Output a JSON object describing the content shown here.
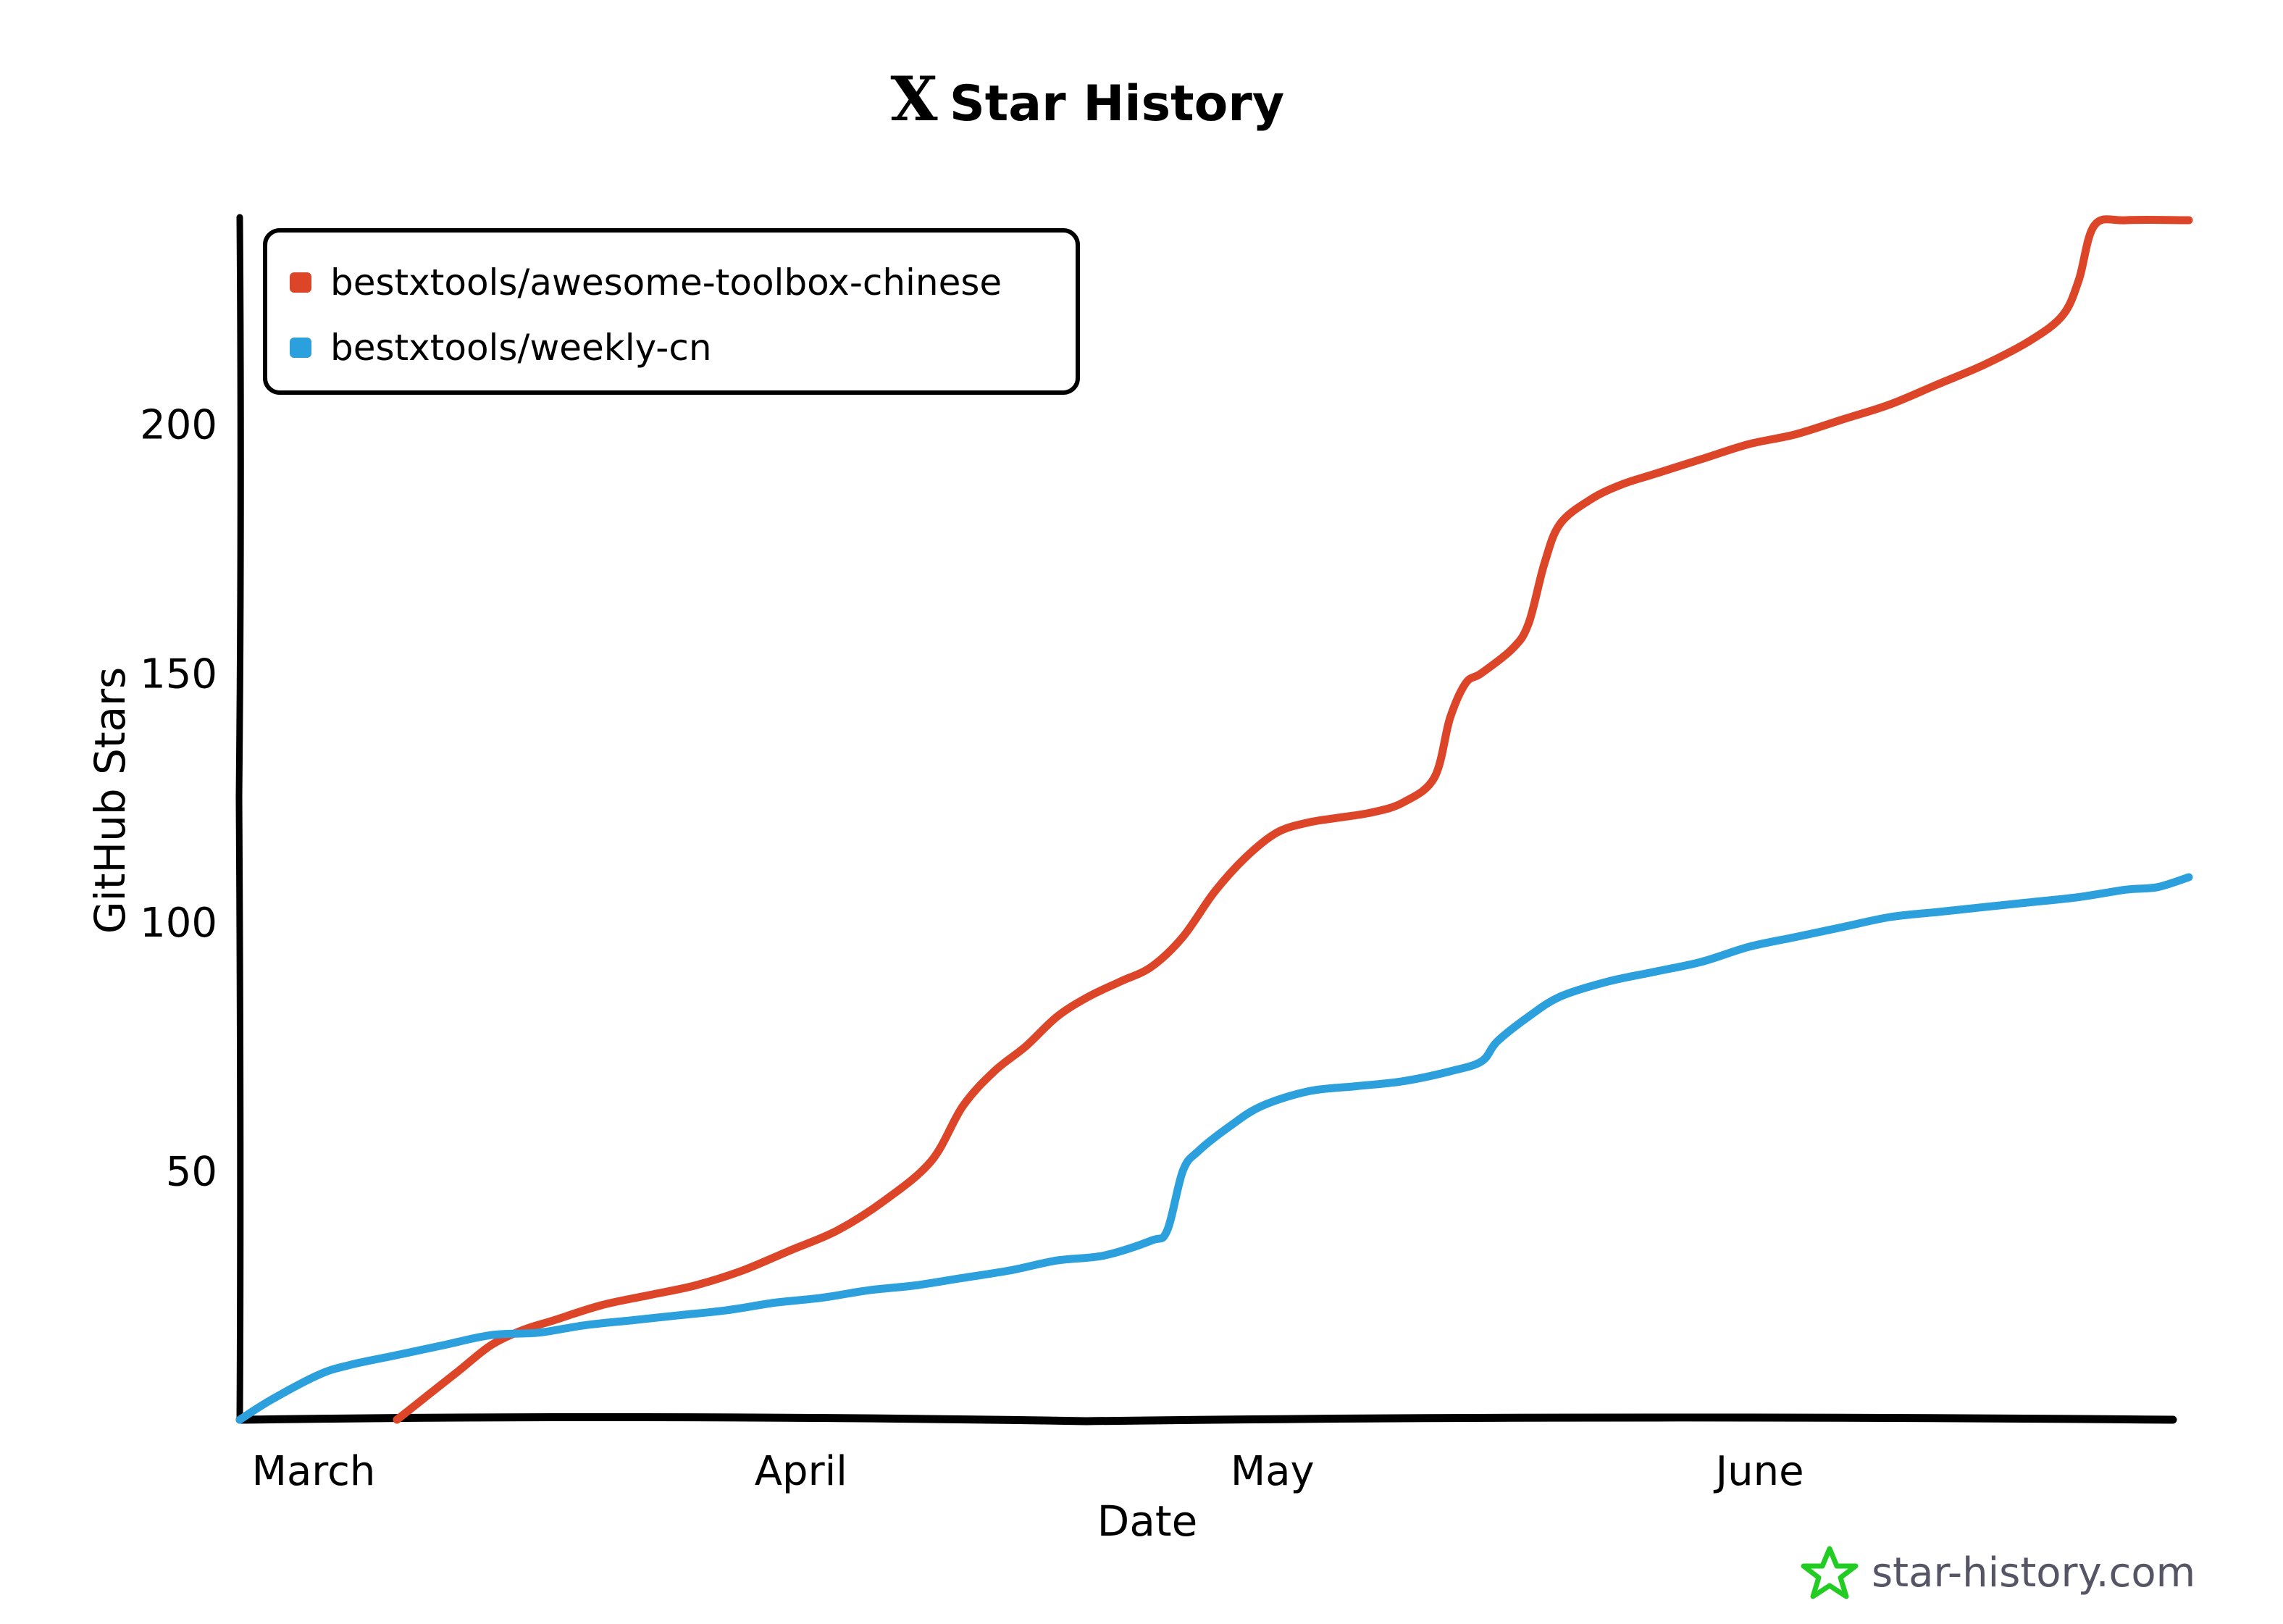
{
  "chart_data": {
    "type": "line",
    "title": "Star History",
    "title_logo": "X",
    "xlabel": "Date",
    "ylabel": "GitHub Stars",
    "x_tick_labels": [
      "March",
      "April",
      "May",
      "June"
    ],
    "y_tick_labels": [
      "50",
      "100",
      "150",
      "200"
    ],
    "y_ticks": [
      50,
      100,
      150,
      200
    ],
    "ylim": [
      0,
      241
    ],
    "x_is_day_of_year": false,
    "legend_position": "top-left",
    "grid": false,
    "series": [
      {
        "name": "bestxtools/awesome-toolbox-chinese",
        "color": "#dd4528",
        "points": [
          [
            "2024-03-11",
            0
          ],
          [
            "2024-03-13",
            5
          ],
          [
            "2024-03-15",
            10
          ],
          [
            "2024-03-17",
            15
          ],
          [
            "2024-03-19",
            18
          ],
          [
            "2024-03-21",
            20
          ],
          [
            "2024-03-24",
            23
          ],
          [
            "2024-03-27",
            25
          ],
          [
            "2024-03-30",
            27
          ],
          [
            "2024-04-02",
            30
          ],
          [
            "2024-04-05",
            34
          ],
          [
            "2024-04-08",
            38
          ],
          [
            "2024-04-11",
            44
          ],
          [
            "2024-04-14",
            52
          ],
          [
            "2024-04-16",
            63
          ],
          [
            "2024-04-18",
            70
          ],
          [
            "2024-04-20",
            75
          ],
          [
            "2024-04-22",
            81
          ],
          [
            "2024-04-24",
            85
          ],
          [
            "2024-04-26",
            88
          ],
          [
            "2024-04-28",
            91
          ],
          [
            "2024-04-30",
            97
          ],
          [
            "2024-05-02",
            106
          ],
          [
            "2024-05-04",
            113
          ],
          [
            "2024-05-06",
            118
          ],
          [
            "2024-05-08",
            120
          ],
          [
            "2024-05-10",
            121
          ],
          [
            "2024-05-12",
            122
          ],
          [
            "2024-05-14",
            124
          ],
          [
            "2024-05-16",
            129
          ],
          [
            "2024-05-17",
            141
          ],
          [
            "2024-05-18",
            148
          ],
          [
            "2024-05-19",
            150
          ],
          [
            "2024-05-21",
            155
          ],
          [
            "2024-05-22",
            160
          ],
          [
            "2024-05-23",
            172
          ],
          [
            "2024-05-24",
            180
          ],
          [
            "2024-05-26",
            185
          ],
          [
            "2024-05-28",
            188
          ],
          [
            "2024-05-30",
            190
          ],
          [
            "2024-06-02",
            193
          ],
          [
            "2024-06-05",
            196
          ],
          [
            "2024-06-08",
            198
          ],
          [
            "2024-06-11",
            201
          ],
          [
            "2024-06-14",
            204
          ],
          [
            "2024-06-17",
            208
          ],
          [
            "2024-06-20",
            212
          ],
          [
            "2024-06-23",
            217
          ],
          [
            "2024-06-25",
            222
          ],
          [
            "2024-06-26",
            229
          ],
          [
            "2024-06-27",
            240
          ],
          [
            "2024-06-29",
            241
          ],
          [
            "2024-07-03",
            241
          ]
        ]
      },
      {
        "name": "bestxtools/weekly-cn",
        "color": "#2ca0dc",
        "points": [
          [
            "2024-03-01",
            0
          ],
          [
            "2024-03-03",
            4
          ],
          [
            "2024-03-06",
            9
          ],
          [
            "2024-03-08",
            11
          ],
          [
            "2024-03-11",
            13
          ],
          [
            "2024-03-14",
            15
          ],
          [
            "2024-03-17",
            17
          ],
          [
            "2024-03-20",
            17.5
          ],
          [
            "2024-03-23",
            19
          ],
          [
            "2024-03-26",
            20
          ],
          [
            "2024-03-29",
            21
          ],
          [
            "2024-04-01",
            22
          ],
          [
            "2024-04-04",
            23.5
          ],
          [
            "2024-04-07",
            24.5
          ],
          [
            "2024-04-10",
            26
          ],
          [
            "2024-04-13",
            27
          ],
          [
            "2024-04-16",
            28.5
          ],
          [
            "2024-04-19",
            30
          ],
          [
            "2024-04-22",
            32
          ],
          [
            "2024-04-25",
            33
          ],
          [
            "2024-04-28",
            36
          ],
          [
            "2024-04-29",
            38
          ],
          [
            "2024-04-30",
            50
          ],
          [
            "2024-05-01",
            54
          ],
          [
            "2024-05-03",
            59
          ],
          [
            "2024-05-05",
            63
          ],
          [
            "2024-05-08",
            66
          ],
          [
            "2024-05-11",
            67
          ],
          [
            "2024-05-14",
            68
          ],
          [
            "2024-05-17",
            70
          ],
          [
            "2024-05-19",
            72
          ],
          [
            "2024-05-20",
            76
          ],
          [
            "2024-05-22",
            81
          ],
          [
            "2024-05-24",
            85
          ],
          [
            "2024-05-27",
            88
          ],
          [
            "2024-05-30",
            90
          ],
          [
            "2024-06-02",
            92
          ],
          [
            "2024-06-05",
            95
          ],
          [
            "2024-06-08",
            97
          ],
          [
            "2024-06-11",
            99
          ],
          [
            "2024-06-14",
            101
          ],
          [
            "2024-06-17",
            102
          ],
          [
            "2024-06-20",
            103
          ],
          [
            "2024-06-23",
            104
          ],
          [
            "2024-06-26",
            105
          ],
          [
            "2024-06-29",
            106.5
          ],
          [
            "2024-07-01",
            107
          ],
          [
            "2024-07-03",
            109
          ]
        ]
      }
    ]
  },
  "watermark": {
    "text": "star-history.com",
    "icon": "star-icon",
    "icon_color": "#22cc22"
  },
  "colors": {
    "axis": "#000000",
    "background": "#ffffff"
  }
}
